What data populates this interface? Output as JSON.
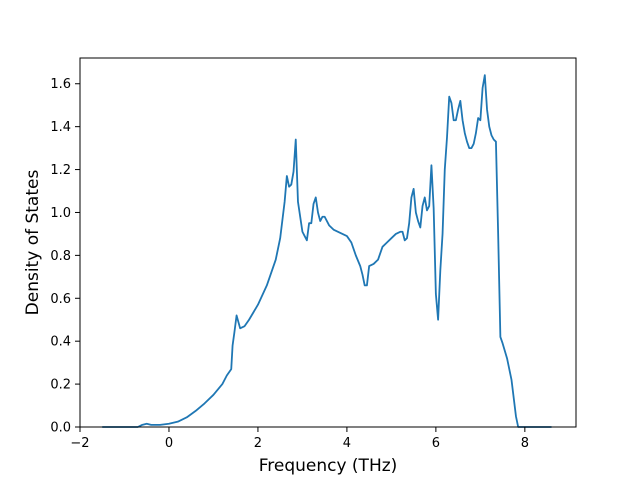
{
  "chart_data": {
    "type": "line",
    "title": "",
    "xlabel": "Frequency (THz)",
    "ylabel": "Density of States",
    "xlim": [
      -2,
      9.15
    ],
    "ylim": [
      0,
      1.72
    ],
    "xticks": [
      -2,
      0,
      2,
      4,
      6,
      8
    ],
    "xtick_labels": [
      "−2",
      "0",
      "2",
      "4",
      "6",
      "8"
    ],
    "yticks": [
      0.0,
      0.2,
      0.4,
      0.6,
      0.8,
      1.0,
      1.2,
      1.4,
      1.6
    ],
    "ytick_labels": [
      "0.0",
      "0.2",
      "0.4",
      "0.6",
      "0.8",
      "1.0",
      "1.2",
      "1.4",
      "1.6"
    ],
    "grid": false,
    "series": [
      {
        "color": "#1f77b4",
        "x": [
          -1.5,
          -0.7,
          -0.6,
          -0.5,
          -0.4,
          -0.2,
          0.0,
          0.2,
          0.4,
          0.6,
          0.8,
          1.0,
          1.2,
          1.3,
          1.4,
          1.43,
          1.47,
          1.52,
          1.6,
          1.7,
          1.8,
          2.0,
          2.2,
          2.4,
          2.5,
          2.6,
          2.65,
          2.7,
          2.75,
          2.8,
          2.85,
          2.9,
          3.0,
          3.05,
          3.1,
          3.15,
          3.2,
          3.25,
          3.3,
          3.35,
          3.4,
          3.45,
          3.5,
          3.6,
          3.7,
          3.8,
          3.9,
          4.0,
          4.1,
          4.2,
          4.3,
          4.35,
          4.4,
          4.45,
          4.5,
          4.6,
          4.7,
          4.8,
          4.9,
          5.0,
          5.1,
          5.2,
          5.25,
          5.3,
          5.35,
          5.4,
          5.45,
          5.5,
          5.55,
          5.6,
          5.65,
          5.7,
          5.75,
          5.8,
          5.85,
          5.9,
          5.95,
          6.0,
          6.05,
          6.1,
          6.15,
          6.2,
          6.25,
          6.3,
          6.35,
          6.4,
          6.45,
          6.5,
          6.55,
          6.6,
          6.65,
          6.7,
          6.75,
          6.8,
          6.85,
          6.9,
          6.95,
          7.0,
          7.05,
          7.1,
          7.15,
          7.2,
          7.25,
          7.3,
          7.35,
          7.4,
          7.45,
          7.5,
          7.6,
          7.7,
          7.8,
          7.85,
          8.0,
          8.6
        ],
        "y": [
          0.0,
          0.0,
          0.01,
          0.015,
          0.01,
          0.01,
          0.015,
          0.025,
          0.045,
          0.075,
          0.11,
          0.15,
          0.2,
          0.24,
          0.27,
          0.38,
          0.44,
          0.52,
          0.46,
          0.47,
          0.5,
          0.57,
          0.66,
          0.78,
          0.88,
          1.05,
          1.17,
          1.12,
          1.13,
          1.19,
          1.34,
          1.05,
          0.91,
          0.89,
          0.87,
          0.95,
          0.95,
          1.04,
          1.07,
          1.0,
          0.96,
          0.98,
          0.98,
          0.94,
          0.92,
          0.91,
          0.9,
          0.89,
          0.86,
          0.8,
          0.75,
          0.71,
          0.66,
          0.66,
          0.75,
          0.76,
          0.78,
          0.84,
          0.86,
          0.88,
          0.9,
          0.91,
          0.91,
          0.87,
          0.88,
          0.95,
          1.07,
          1.11,
          1.0,
          0.96,
          0.93,
          1.03,
          1.07,
          1.01,
          1.03,
          1.22,
          1.02,
          0.62,
          0.5,
          0.73,
          0.9,
          1.2,
          1.35,
          1.54,
          1.51,
          1.43,
          1.43,
          1.48,
          1.52,
          1.43,
          1.37,
          1.33,
          1.3,
          1.3,
          1.32,
          1.37,
          1.44,
          1.43,
          1.58,
          1.64,
          1.48,
          1.4,
          1.36,
          1.34,
          1.33,
          0.9,
          0.42,
          0.39,
          0.32,
          0.22,
          0.05,
          0.0,
          0.0,
          0.0
        ]
      }
    ]
  }
}
